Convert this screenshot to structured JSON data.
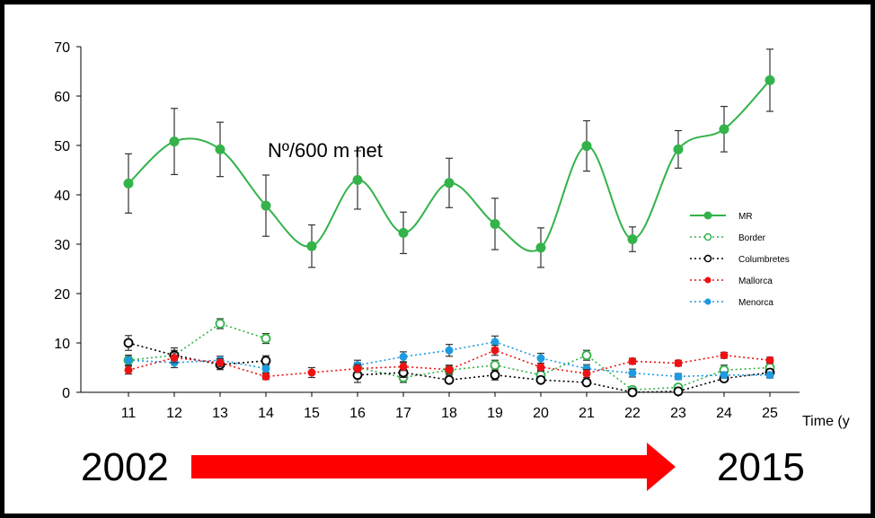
{
  "chart_data": {
    "type": "line",
    "x": [
      11,
      12,
      13,
      14,
      15,
      16,
      17,
      18,
      19,
      20,
      21,
      22,
      23,
      24,
      25
    ],
    "xlabel": "Time (y",
    "ylim": [
      0,
      70
    ],
    "yticks": [
      0,
      10,
      20,
      30,
      40,
      50,
      60,
      70
    ],
    "grid": false,
    "legend_position": "right",
    "annotation": "Nº/600 m net",
    "series": [
      {
        "name": "MR",
        "color": "#33b34a",
        "style": "solid-smooth",
        "marker": "filled",
        "values": [
          42.3,
          50.8,
          49.2,
          37.8,
          29.6,
          43.0,
          32.3,
          42.4,
          34.1,
          29.3,
          49.9,
          31.0,
          49.2,
          53.3,
          63.2
        ],
        "errors": [
          6.0,
          6.7,
          5.5,
          6.2,
          4.3,
          5.9,
          4.2,
          5.0,
          5.2,
          4.0,
          5.1,
          2.5,
          3.8,
          4.6,
          6.3
        ]
      },
      {
        "name": "Border",
        "color": "#33b34a",
        "style": "dotted",
        "marker": "open",
        "values": [
          6.5,
          7.5,
          13.9,
          10.9,
          null,
          5.0,
          3.0,
          4.5,
          5.5,
          3.5,
          7.5,
          0.5,
          1.0,
          4.5,
          5.0
        ],
        "errors": [
          1.0,
          1.0,
          1.0,
          1.0,
          null,
          1.0,
          1.0,
          1.0,
          1.0,
          1.0,
          1.0,
          0.5,
          0.5,
          1.0,
          1.0
        ]
      },
      {
        "name": "Columbretes",
        "color": "#000000",
        "style": "dotted",
        "marker": "open",
        "values": [
          10.0,
          7.5,
          5.6,
          6.4,
          null,
          3.5,
          4.0,
          2.5,
          3.5,
          2.5,
          2.0,
          0.0,
          0.2,
          2.8,
          4.0
        ],
        "errors": [
          1.5,
          1.5,
          1.0,
          1.0,
          null,
          1.5,
          1.0,
          0.5,
          1.0,
          0.5,
          0.5,
          0.3,
          0.3,
          0.5,
          0.5
        ]
      },
      {
        "name": "Mallorca",
        "color": "#ee1111",
        "style": "dotted",
        "marker": "filled",
        "values": [
          4.5,
          7.0,
          6.0,
          3.2,
          4.0,
          4.8,
          5.2,
          4.6,
          8.5,
          5.1,
          3.8,
          6.3,
          5.9,
          7.5,
          6.5
        ],
        "errors": [
          0.8,
          1.0,
          0.8,
          0.6,
          1.0,
          0.8,
          0.8,
          0.8,
          1.0,
          0.8,
          0.8,
          0.6,
          0.6,
          0.6,
          0.6
        ]
      },
      {
        "name": "Menorca",
        "color": "#1e9be0",
        "style": "dotted",
        "marker": "filled",
        "values": [
          6.5,
          6.0,
          6.5,
          4.8,
          null,
          5.5,
          7.2,
          8.5,
          10.2,
          6.9,
          4.8,
          3.9,
          3.2,
          3.5,
          3.5
        ],
        "errors": [
          1.0,
          1.0,
          0.8,
          0.8,
          null,
          1.0,
          1.0,
          1.2,
          1.2,
          1.0,
          0.8,
          0.8,
          0.6,
          0.6,
          0.6
        ]
      }
    ]
  },
  "timeline": {
    "start": "2002",
    "end": "2015",
    "arrow_color": "#ff0000"
  }
}
